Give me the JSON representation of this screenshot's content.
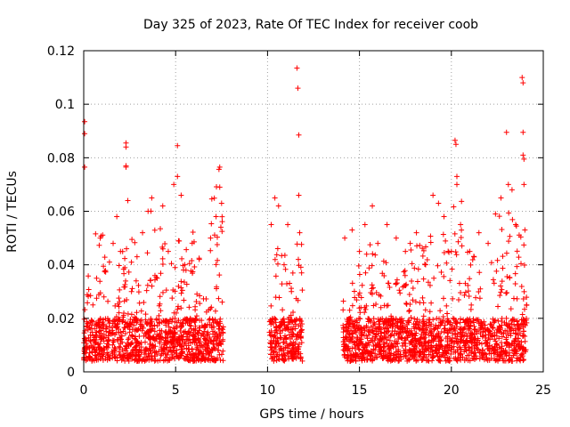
{
  "chart_data": {
    "type": "scatter",
    "title": "Day 325 of 2023, Rate Of TEC Index for receiver coob",
    "xlabel": "GPS time / hours",
    "ylabel": "ROTI / TECUs",
    "xlim": [
      0,
      25
    ],
    "ylim": [
      0,
      0.12
    ],
    "x_ticks": [
      0,
      5,
      10,
      15,
      20,
      25
    ],
    "x_tick_labels": [
      "0",
      "5",
      "10",
      "15",
      "20",
      "25"
    ],
    "y_ticks": [
      0,
      0.02,
      0.04,
      0.06,
      0.08,
      0.1,
      0.12
    ],
    "y_tick_labels": [
      "0",
      "0.02",
      "0.04",
      "0.06",
      "0.08",
      "0.1",
      "0.12"
    ],
    "grid": true,
    "marker": "+",
    "color": "#ff0000",
    "data_windows": [
      {
        "start": 0.0,
        "end": 7.6
      },
      {
        "start": 10.1,
        "end": 11.9
      },
      {
        "start": 14.1,
        "end": 24.1
      }
    ],
    "series": [
      {
        "values_note": "dense scatter, representative points",
        "points": [
          [
            0.05,
            0.0935
          ],
          [
            0.05,
            0.089
          ],
          [
            0.05,
            0.0765
          ],
          [
            0.1,
            0.0125
          ],
          [
            0.2,
            0.018
          ],
          [
            0.3,
            0.009
          ],
          [
            0.5,
            0.025
          ],
          [
            0.7,
            0.035
          ],
          [
            0.9,
            0.05
          ],
          [
            1.1,
            0.028
          ],
          [
            1.4,
            0.041
          ],
          [
            1.6,
            0.048
          ],
          [
            1.8,
            0.058
          ],
          [
            2.0,
            0.045
          ],
          [
            2.3,
            0.0855
          ],
          [
            2.3,
            0.084
          ],
          [
            2.3,
            0.077
          ],
          [
            2.3,
            0.0765
          ],
          [
            2.4,
            0.064
          ],
          [
            2.6,
            0.03
          ],
          [
            2.9,
            0.043
          ],
          [
            3.2,
            0.052
          ],
          [
            3.5,
            0.06
          ],
          [
            3.7,
            0.065
          ],
          [
            4.0,
            0.035
          ],
          [
            4.3,
            0.062
          ],
          [
            4.6,
            0.045
          ],
          [
            4.9,
            0.07
          ],
          [
            5.1,
            0.0845
          ],
          [
            5.1,
            0.073
          ],
          [
            5.3,
            0.066
          ],
          [
            5.5,
            0.04
          ],
          [
            5.8,
            0.02
          ],
          [
            6.9,
            0.05
          ],
          [
            7.2,
            0.058
          ],
          [
            7.4,
            0.0765
          ],
          [
            7.4,
            0.069
          ],
          [
            7.5,
            0.063
          ],
          [
            10.2,
            0.055
          ],
          [
            10.4,
            0.065
          ],
          [
            10.6,
            0.062
          ],
          [
            10.9,
            0.04
          ],
          [
            11.1,
            0.055
          ],
          [
            11.3,
            0.03
          ],
          [
            11.6,
            0.1135
          ],
          [
            11.65,
            0.106
          ],
          [
            11.7,
            0.0885
          ],
          [
            11.7,
            0.066
          ],
          [
            11.75,
            0.052
          ],
          [
            14.2,
            0.05
          ],
          [
            14.6,
            0.053
          ],
          [
            15.0,
            0.045
          ],
          [
            15.3,
            0.055
          ],
          [
            15.7,
            0.062
          ],
          [
            16.0,
            0.048
          ],
          [
            16.5,
            0.055
          ],
          [
            17.0,
            0.05
          ],
          [
            17.5,
            0.045
          ],
          [
            18.1,
            0.052
          ],
          [
            18.6,
            0.04
          ],
          [
            19.0,
            0.066
          ],
          [
            19.3,
            0.063
          ],
          [
            19.6,
            0.058
          ],
          [
            20.0,
            0.045
          ],
          [
            20.2,
            0.0865
          ],
          [
            20.25,
            0.085
          ],
          [
            20.3,
            0.073
          ],
          [
            20.3,
            0.07
          ],
          [
            20.5,
            0.055
          ],
          [
            21.0,
            0.045
          ],
          [
            21.5,
            0.052
          ],
          [
            22.0,
            0.048
          ],
          [
            22.4,
            0.059
          ],
          [
            22.7,
            0.065
          ],
          [
            23.0,
            0.0895
          ],
          [
            23.1,
            0.07
          ],
          [
            23.3,
            0.068
          ],
          [
            23.5,
            0.055
          ],
          [
            23.85,
            0.11
          ],
          [
            23.9,
            0.108
          ],
          [
            23.9,
            0.0895
          ],
          [
            23.9,
            0.081
          ],
          [
            23.95,
            0.0795
          ],
          [
            23.95,
            0.07
          ],
          [
            24.0,
            0.053
          ]
        ]
      }
    ]
  }
}
